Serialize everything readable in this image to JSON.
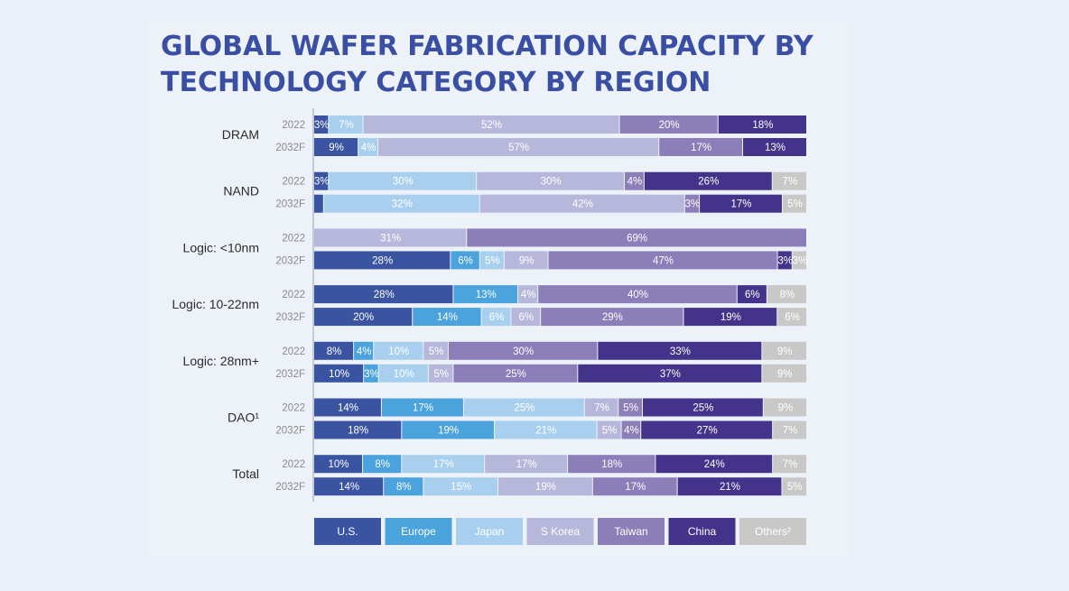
{
  "title": "GLOBAL WAFER FABRICATION CAPACITY BY TECHNOLOGY CATEGORY BY REGION",
  "colors": {
    "U.S.": "#3b54a2",
    "Europe": "#4aa3dc",
    "Japan": "#a8d0ee",
    "S Korea": "#b7b7db",
    "Taiwan": "#8c7eb8",
    "China": "#44338a",
    "Others": "#c8c8c8"
  },
  "chart_data": {
    "type": "bar",
    "orientation": "horizontal",
    "stacked": "100%",
    "series_order": [
      "U.S.",
      "Europe",
      "Japan",
      "S Korea",
      "Taiwan",
      "China",
      "Others"
    ],
    "legend": [
      {
        "name": "U.S.",
        "label": "U.S."
      },
      {
        "name": "Europe",
        "label": "Europe"
      },
      {
        "name": "Japan",
        "label": "Japan"
      },
      {
        "name": "S Korea",
        "label": "S Korea"
      },
      {
        "name": "Taiwan",
        "label": "Taiwan"
      },
      {
        "name": "China",
        "label": "China"
      },
      {
        "name": "Others",
        "label": "Others²"
      }
    ],
    "groups": [
      {
        "label": "DRAM",
        "rows": [
          {
            "year": "2022",
            "segments": [
              {
                "series": "U.S.",
                "value": 3,
                "label": "3%"
              },
              {
                "series": "Europe",
                "value": 0,
                "label": ""
              },
              {
                "series": "Japan",
                "value": 7,
                "label": "7%"
              },
              {
                "series": "S Korea",
                "value": 52,
                "label": "52%"
              },
              {
                "series": "Taiwan",
                "value": 20,
                "label": "20%"
              },
              {
                "series": "China",
                "value": 18,
                "label": "18%"
              },
              {
                "series": "Others",
                "value": 0,
                "label": ""
              }
            ]
          },
          {
            "year": "2032F",
            "segments": [
              {
                "series": "U.S.",
                "value": 9,
                "label": "9%"
              },
              {
                "series": "Europe",
                "value": 0,
                "label": ""
              },
              {
                "series": "Japan",
                "value": 4,
                "label": "4%"
              },
              {
                "series": "S Korea",
                "value": 57,
                "label": "57%"
              },
              {
                "series": "Taiwan",
                "value": 17,
                "label": "17%"
              },
              {
                "series": "China",
                "value": 13,
                "label": "13%"
              },
              {
                "series": "Others",
                "value": 0,
                "label": ""
              }
            ]
          }
        ]
      },
      {
        "label": "NAND",
        "rows": [
          {
            "year": "2022",
            "segments": [
              {
                "series": "U.S.",
                "value": 3,
                "label": "3%"
              },
              {
                "series": "Europe",
                "value": 0,
                "label": ""
              },
              {
                "series": "Japan",
                "value": 30,
                "label": "30%"
              },
              {
                "series": "S Korea",
                "value": 30,
                "label": "30%"
              },
              {
                "series": "Taiwan",
                "value": 4,
                "label": "4%"
              },
              {
                "series": "China",
                "value": 26,
                "label": "26%"
              },
              {
                "series": "Others",
                "value": 7,
                "label": "7%"
              }
            ]
          },
          {
            "year": "2032F",
            "segments": [
              {
                "series": "U.S.",
                "value": 2,
                "label": ""
              },
              {
                "series": "Europe",
                "value": 0,
                "label": ""
              },
              {
                "series": "Japan",
                "value": 32,
                "label": "32%"
              },
              {
                "series": "S Korea",
                "value": 42,
                "label": "42%"
              },
              {
                "series": "Taiwan",
                "value": 3,
                "label": "3%"
              },
              {
                "series": "China",
                "value": 17,
                "label": "17%"
              },
              {
                "series": "Others",
                "value": 5,
                "label": "5%"
              }
            ]
          }
        ]
      },
      {
        "label": "Logic: <10nm",
        "rows": [
          {
            "year": "2022",
            "segments": [
              {
                "series": "U.S.",
                "value": 0,
                "label": ""
              },
              {
                "series": "Europe",
                "value": 0,
                "label": ""
              },
              {
                "series": "Japan",
                "value": 0,
                "label": ""
              },
              {
                "series": "S Korea",
                "value": 31,
                "label": "31%"
              },
              {
                "series": "Taiwan",
                "value": 69,
                "label": "69%"
              },
              {
                "series": "China",
                "value": 0,
                "label": ""
              },
              {
                "series": "Others",
                "value": 0,
                "label": ""
              }
            ]
          },
          {
            "year": "2032F",
            "segments": [
              {
                "series": "U.S.",
                "value": 28,
                "label": "28%"
              },
              {
                "series": "Europe",
                "value": 6,
                "label": "6%"
              },
              {
                "series": "Japan",
                "value": 5,
                "label": "5%"
              },
              {
                "series": "S Korea",
                "value": 9,
                "label": "9%"
              },
              {
                "series": "Taiwan",
                "value": 47,
                "label": "47%"
              },
              {
                "series": "China",
                "value": 3,
                "label": "3%"
              },
              {
                "series": "Others",
                "value": 3,
                "label": "3%"
              }
            ]
          }
        ]
      },
      {
        "label": "Logic: 10-22nm",
        "rows": [
          {
            "year": "2022",
            "segments": [
              {
                "series": "U.S.",
                "value": 28,
                "label": "28%"
              },
              {
                "series": "Europe",
                "value": 13,
                "label": "13%"
              },
              {
                "series": "Japan",
                "value": 0,
                "label": ""
              },
              {
                "series": "S Korea",
                "value": 4,
                "label": "4%"
              },
              {
                "series": "Taiwan",
                "value": 40,
                "label": "40%"
              },
              {
                "series": "China",
                "value": 6,
                "label": "6%"
              },
              {
                "series": "Others",
                "value": 8,
                "label": "8%"
              }
            ]
          },
          {
            "year": "2032F",
            "segments": [
              {
                "series": "U.S.",
                "value": 20,
                "label": "20%"
              },
              {
                "series": "Europe",
                "value": 14,
                "label": "14%"
              },
              {
                "series": "Japan",
                "value": 6,
                "label": "6%"
              },
              {
                "series": "S Korea",
                "value": 6,
                "label": "6%"
              },
              {
                "series": "Taiwan",
                "value": 29,
                "label": "29%"
              },
              {
                "series": "China",
                "value": 19,
                "label": "19%"
              },
              {
                "series": "Others",
                "value": 6,
                "label": "6%"
              }
            ]
          }
        ]
      },
      {
        "label": "Logic: 28nm+",
        "rows": [
          {
            "year": "2022",
            "segments": [
              {
                "series": "U.S.",
                "value": 8,
                "label": "8%"
              },
              {
                "series": "Europe",
                "value": 4,
                "label": "4%"
              },
              {
                "series": "Japan",
                "value": 10,
                "label": "10%"
              },
              {
                "series": "S Korea",
                "value": 5,
                "label": "5%"
              },
              {
                "series": "Taiwan",
                "value": 30,
                "label": "30%"
              },
              {
                "series": "China",
                "value": 33,
                "label": "33%"
              },
              {
                "series": "Others",
                "value": 9,
                "label": "9%"
              }
            ]
          },
          {
            "year": "2032F",
            "segments": [
              {
                "series": "U.S.",
                "value": 10,
                "label": "10%"
              },
              {
                "series": "Europe",
                "value": 3,
                "label": "3%"
              },
              {
                "series": "Japan",
                "value": 10,
                "label": "10%"
              },
              {
                "series": "S Korea",
                "value": 5,
                "label": "5%"
              },
              {
                "series": "Taiwan",
                "value": 25,
                "label": "25%"
              },
              {
                "series": "China",
                "value": 37,
                "label": "37%"
              },
              {
                "series": "Others",
                "value": 9,
                "label": "9%"
              }
            ]
          }
        ]
      },
      {
        "label": "DAO¹",
        "rows": [
          {
            "year": "2022",
            "segments": [
              {
                "series": "U.S.",
                "value": 14,
                "label": "14%"
              },
              {
                "series": "Europe",
                "value": 17,
                "label": "17%"
              },
              {
                "series": "Japan",
                "value": 25,
                "label": "25%"
              },
              {
                "series": "S Korea",
                "value": 7,
                "label": "7%"
              },
              {
                "series": "Taiwan",
                "value": 5,
                "label": "5%"
              },
              {
                "series": "China",
                "value": 25,
                "label": "25%"
              },
              {
                "series": "Others",
                "value": 9,
                "label": "9%"
              }
            ]
          },
          {
            "year": "2032F",
            "segments": [
              {
                "series": "U.S.",
                "value": 18,
                "label": "18%"
              },
              {
                "series": "Europe",
                "value": 19,
                "label": "19%"
              },
              {
                "series": "Japan",
                "value": 21,
                "label": "21%"
              },
              {
                "series": "S Korea",
                "value": 5,
                "label": "5%"
              },
              {
                "series": "Taiwan",
                "value": 4,
                "label": "4%"
              },
              {
                "series": "China",
                "value": 27,
                "label": "27%"
              },
              {
                "series": "Others",
                "value": 7,
                "label": "7%"
              }
            ]
          }
        ]
      },
      {
        "label": "Total",
        "rows": [
          {
            "year": "2022",
            "segments": [
              {
                "series": "U.S.",
                "value": 10,
                "label": "10%"
              },
              {
                "series": "Europe",
                "value": 8,
                "label": "8%"
              },
              {
                "series": "Japan",
                "value": 17,
                "label": "17%"
              },
              {
                "series": "S Korea",
                "value": 17,
                "label": "17%"
              },
              {
                "series": "Taiwan",
                "value": 18,
                "label": "18%"
              },
              {
                "series": "China",
                "value": 24,
                "label": "24%"
              },
              {
                "series": "Others",
                "value": 7,
                "label": "7%"
              }
            ]
          },
          {
            "year": "2032F",
            "segments": [
              {
                "series": "U.S.",
                "value": 14,
                "label": "14%"
              },
              {
                "series": "Europe",
                "value": 8,
                "label": "8%"
              },
              {
                "series": "Japan",
                "value": 15,
                "label": "15%"
              },
              {
                "series": "S Korea",
                "value": 19,
                "label": "19%"
              },
              {
                "series": "Taiwan",
                "value": 17,
                "label": "17%"
              },
              {
                "series": "China",
                "value": 21,
                "label": "21%"
              },
              {
                "series": "Others",
                "value": 5,
                "label": "5%"
              }
            ]
          }
        ]
      }
    ]
  }
}
